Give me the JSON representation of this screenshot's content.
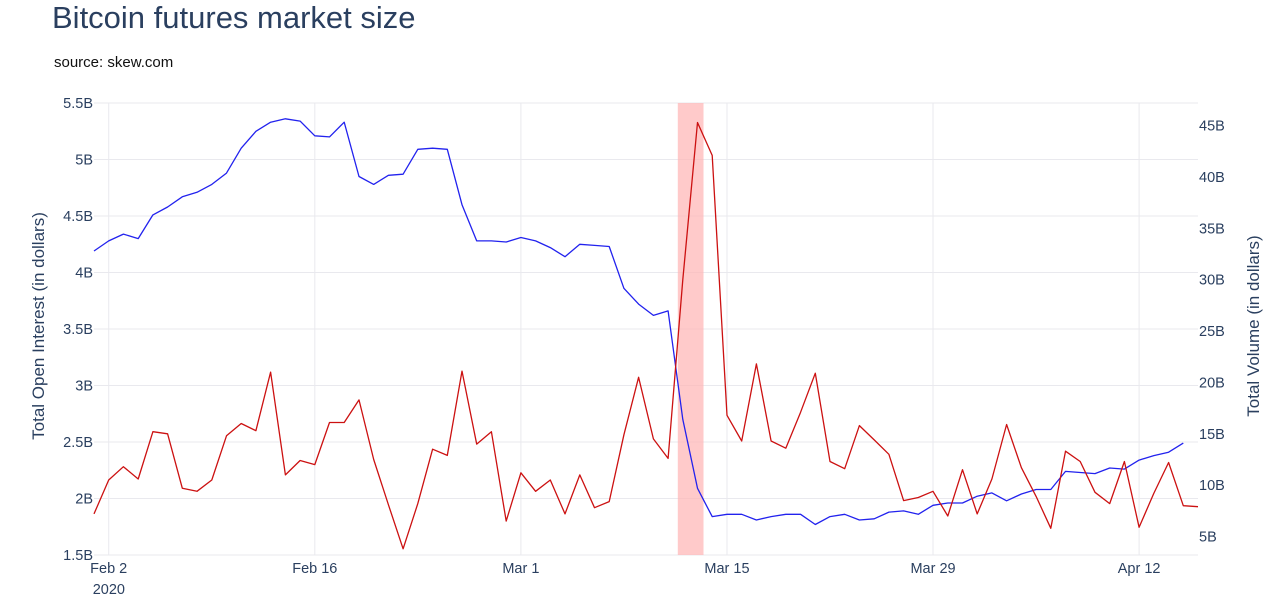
{
  "chart_data": {
    "type": "line",
    "title": "Bitcoin futures market size",
    "subtitle": "source: skew.com",
    "ylabel": "Total Open Interest (in dollars)",
    "y2label": "Total Volume (in dollars)",
    "x_start": "2020-02-01",
    "x_end": "2020-04-16",
    "ylim": [
      1.5,
      5.5
    ],
    "y2lim": [
      3.2,
      47.2
    ],
    "y_ticks": [
      {
        "value": 1.5,
        "label": "1.5B"
      },
      {
        "value": 2,
        "label": "2B"
      },
      {
        "value": 2.5,
        "label": "2.5B"
      },
      {
        "value": 3,
        "label": "3B"
      },
      {
        "value": 3.5,
        "label": "3.5B"
      },
      {
        "value": 4,
        "label": "4B"
      },
      {
        "value": 4.5,
        "label": "4.5B"
      },
      {
        "value": 5,
        "label": "5B"
      },
      {
        "value": 5.5,
        "label": "5.5B"
      }
    ],
    "y2_ticks": [
      {
        "value": 5,
        "label": "5B"
      },
      {
        "value": 10,
        "label": "10B"
      },
      {
        "value": 15,
        "label": "15B"
      },
      {
        "value": 20,
        "label": "20B"
      },
      {
        "value": 25,
        "label": "25B"
      },
      {
        "value": 30,
        "label": "30B"
      },
      {
        "value": 35,
        "label": "35B"
      },
      {
        "value": 40,
        "label": "40B"
      },
      {
        "value": 45,
        "label": "45B"
      }
    ],
    "x_ticks": [
      {
        "date": "2020-02-02",
        "label": "Feb 2",
        "sublabel": "2020"
      },
      {
        "date": "2020-02-16",
        "label": "Feb 16"
      },
      {
        "date": "2020-03-01",
        "label": "Mar 1"
      },
      {
        "date": "2020-03-15",
        "label": "Mar 15"
      },
      {
        "date": "2020-03-29",
        "label": "Mar 29"
      },
      {
        "date": "2020-04-12",
        "label": "Apr 12"
      }
    ],
    "highlight": {
      "start": "2020-03-12",
      "end": "2020-03-13",
      "color": "#ffb3b3"
    },
    "grid": true,
    "series": [
      {
        "axis": "y",
        "color": "#2222ee",
        "points": [
          [
            "2020-02-01",
            4.19
          ],
          [
            "2020-02-02",
            4.28
          ],
          [
            "2020-02-03",
            4.34
          ],
          [
            "2020-02-04",
            4.3
          ],
          [
            "2020-02-05",
            4.51
          ],
          [
            "2020-02-06",
            4.58
          ],
          [
            "2020-02-07",
            4.67
          ],
          [
            "2020-02-08",
            4.71
          ],
          [
            "2020-02-09",
            4.78
          ],
          [
            "2020-02-10",
            4.88
          ],
          [
            "2020-02-11",
            5.1
          ],
          [
            "2020-02-12",
            5.25
          ],
          [
            "2020-02-13",
            5.33
          ],
          [
            "2020-02-14",
            5.36
          ],
          [
            "2020-02-15",
            5.34
          ],
          [
            "2020-02-16",
            5.21
          ],
          [
            "2020-02-17",
            5.2
          ],
          [
            "2020-02-18",
            5.33
          ],
          [
            "2020-02-19",
            4.85
          ],
          [
            "2020-02-20",
            4.78
          ],
          [
            "2020-02-21",
            4.86
          ],
          [
            "2020-02-22",
            4.87
          ],
          [
            "2020-02-23",
            5.09
          ],
          [
            "2020-02-24",
            5.1
          ],
          [
            "2020-02-25",
            5.09
          ],
          [
            "2020-02-26",
            4.6
          ],
          [
            "2020-02-27",
            4.28
          ],
          [
            "2020-02-28",
            4.28
          ],
          [
            "2020-02-29",
            4.27
          ],
          [
            "2020-03-01",
            4.31
          ],
          [
            "2020-03-02",
            4.28
          ],
          [
            "2020-03-03",
            4.22
          ],
          [
            "2020-03-04",
            4.14
          ],
          [
            "2020-03-05",
            4.25
          ],
          [
            "2020-03-06",
            4.24
          ],
          [
            "2020-03-07",
            4.23
          ],
          [
            "2020-03-08",
            3.86
          ],
          [
            "2020-03-09",
            3.72
          ],
          [
            "2020-03-10",
            3.62
          ],
          [
            "2020-03-11",
            3.66
          ],
          [
            "2020-03-12",
            2.7
          ],
          [
            "2020-03-13",
            2.09
          ],
          [
            "2020-03-14",
            1.84
          ],
          [
            "2020-03-15",
            1.86
          ],
          [
            "2020-03-16",
            1.86
          ],
          [
            "2020-03-17",
            1.81
          ],
          [
            "2020-03-18",
            1.84
          ],
          [
            "2020-03-19",
            1.86
          ],
          [
            "2020-03-20",
            1.86
          ],
          [
            "2020-03-21",
            1.77
          ],
          [
            "2020-03-22",
            1.84
          ],
          [
            "2020-03-23",
            1.86
          ],
          [
            "2020-03-24",
            1.81
          ],
          [
            "2020-03-25",
            1.82
          ],
          [
            "2020-03-26",
            1.88
          ],
          [
            "2020-03-27",
            1.89
          ],
          [
            "2020-03-28",
            1.86
          ],
          [
            "2020-03-29",
            1.94
          ],
          [
            "2020-03-30",
            1.96
          ],
          [
            "2020-03-31",
            1.96
          ],
          [
            "2020-04-01",
            2.02
          ],
          [
            "2020-04-02",
            2.05
          ],
          [
            "2020-04-03",
            1.98
          ],
          [
            "2020-04-04",
            2.04
          ],
          [
            "2020-04-05",
            2.08
          ],
          [
            "2020-04-06",
            2.08
          ],
          [
            "2020-04-07",
            2.24
          ],
          [
            "2020-04-08",
            2.23
          ],
          [
            "2020-04-09",
            2.22
          ],
          [
            "2020-04-10",
            2.27
          ],
          [
            "2020-04-11",
            2.26
          ],
          [
            "2020-04-12",
            2.34
          ],
          [
            "2020-04-13",
            2.38
          ],
          [
            "2020-04-14",
            2.41
          ],
          [
            "2020-04-15",
            2.49
          ]
        ]
      },
      {
        "axis": "y2",
        "color": "#cc1111",
        "points": [
          [
            "2020-02-01",
            7.2
          ],
          [
            "2020-02-02",
            10.5
          ],
          [
            "2020-02-03",
            11.8
          ],
          [
            "2020-02-04",
            10.6
          ],
          [
            "2020-02-05",
            15.2
          ],
          [
            "2020-02-06",
            15.0
          ],
          [
            "2020-02-07",
            9.7
          ],
          [
            "2020-02-08",
            9.4
          ],
          [
            "2020-02-09",
            10.5
          ],
          [
            "2020-02-10",
            14.8
          ],
          [
            "2020-02-11",
            16.0
          ],
          [
            "2020-02-12",
            15.3
          ],
          [
            "2020-02-13",
            21.0
          ],
          [
            "2020-02-14",
            11.0
          ],
          [
            "2020-02-15",
            12.4
          ],
          [
            "2020-02-16",
            12.0
          ],
          [
            "2020-02-17",
            16.1
          ],
          [
            "2020-02-18",
            16.1
          ],
          [
            "2020-02-19",
            18.3
          ],
          [
            "2020-02-20",
            12.5
          ],
          [
            "2020-02-21",
            8.1
          ],
          [
            "2020-02-22",
            3.8
          ],
          [
            "2020-02-23",
            8.2
          ],
          [
            "2020-02-24",
            13.5
          ],
          [
            "2020-02-25",
            12.9
          ],
          [
            "2020-02-26",
            21.1
          ],
          [
            "2020-02-27",
            14.0
          ],
          [
            "2020-02-28",
            15.2
          ],
          [
            "2020-02-29",
            6.5
          ],
          [
            "2020-03-01",
            11.2
          ],
          [
            "2020-03-02",
            9.4
          ],
          [
            "2020-03-03",
            10.5
          ],
          [
            "2020-03-04",
            7.2
          ],
          [
            "2020-03-05",
            11.0
          ],
          [
            "2020-03-06",
            7.8
          ],
          [
            "2020-03-07",
            8.4
          ],
          [
            "2020-03-08",
            14.9
          ],
          [
            "2020-03-09",
            20.5
          ],
          [
            "2020-03-10",
            14.5
          ],
          [
            "2020-03-11",
            12.6
          ],
          [
            "2020-03-12",
            30.0
          ],
          [
            "2020-03-13",
            45.3
          ],
          [
            "2020-03-14",
            42.1
          ],
          [
            "2020-03-15",
            16.8
          ],
          [
            "2020-03-16",
            14.3
          ],
          [
            "2020-03-17",
            21.8
          ],
          [
            "2020-03-18",
            14.3
          ],
          [
            "2020-03-19",
            13.6
          ],
          [
            "2020-03-20",
            17.1
          ],
          [
            "2020-03-21",
            20.9
          ],
          [
            "2020-03-22",
            12.3
          ],
          [
            "2020-03-23",
            11.6
          ],
          [
            "2020-03-24",
            15.8
          ],
          [
            "2020-03-25",
            14.4
          ],
          [
            "2020-03-26",
            13.0
          ],
          [
            "2020-03-27",
            8.5
          ],
          [
            "2020-03-28",
            8.8
          ],
          [
            "2020-03-29",
            9.4
          ],
          [
            "2020-03-30",
            7.0
          ],
          [
            "2020-03-31",
            11.5
          ],
          [
            "2020-04-01",
            7.2
          ],
          [
            "2020-04-02",
            10.6
          ],
          [
            "2020-04-03",
            15.9
          ],
          [
            "2020-04-04",
            11.7
          ],
          [
            "2020-04-05",
            8.9
          ],
          [
            "2020-04-06",
            5.8
          ],
          [
            "2020-04-07",
            13.3
          ],
          [
            "2020-04-08",
            12.3
          ],
          [
            "2020-04-09",
            9.3
          ],
          [
            "2020-04-10",
            8.2
          ],
          [
            "2020-04-11",
            12.3
          ],
          [
            "2020-04-12",
            5.9
          ],
          [
            "2020-04-13",
            9.2
          ],
          [
            "2020-04-14",
            12.2
          ],
          [
            "2020-04-15",
            8.0
          ],
          [
            "2020-04-16",
            7.9
          ]
        ]
      }
    ]
  }
}
